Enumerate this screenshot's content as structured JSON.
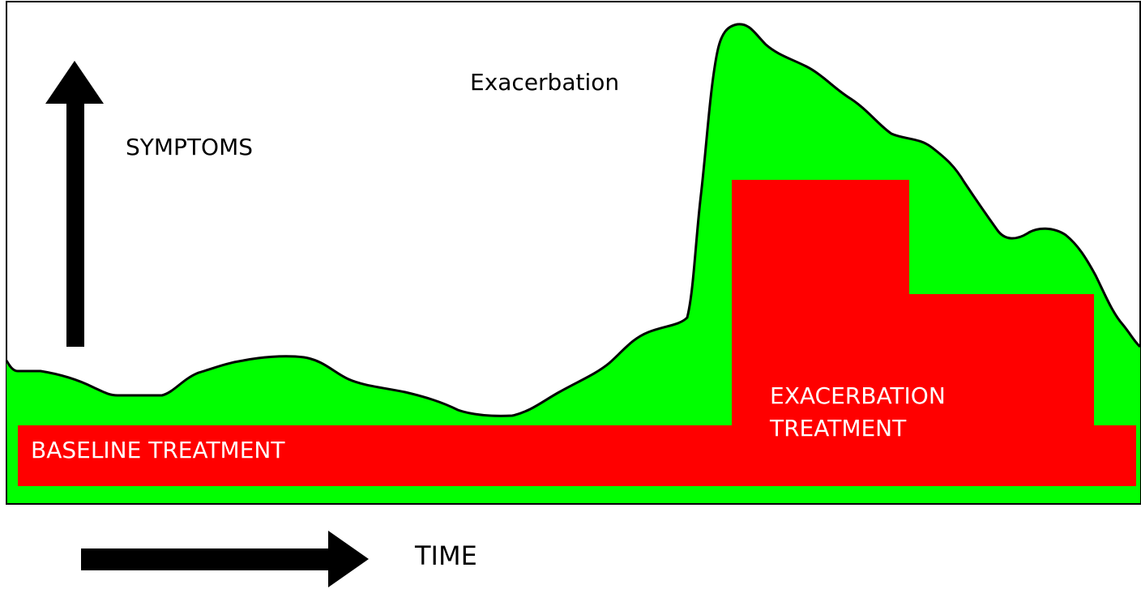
{
  "diagram": {
    "curve_label": "Exacerbation",
    "y_axis_label": "SYMPTOMS",
    "x_axis_label": "TIME",
    "baseline_treatment": "BASELINE TREATMENT",
    "exacerbation_treatment": [
      "EXACERBATION",
      "TREATMENT"
    ]
  }
}
